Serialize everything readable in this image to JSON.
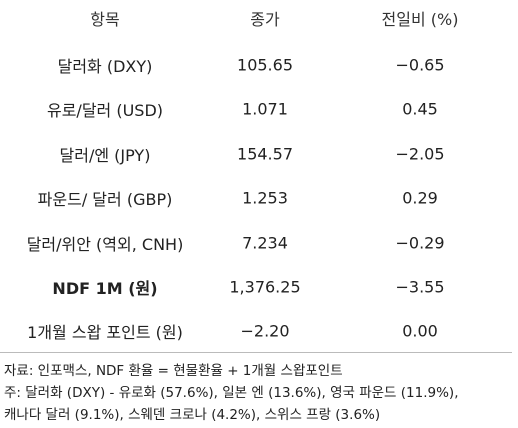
{
  "table": {
    "header": [
      "항목",
      "종가",
      "전일비 (%)"
    ],
    "rows": [
      [
        "달러화 (DXY)",
        "105.65",
        "−0.65"
      ],
      [
        "유로/달러 (USD)",
        "1.071",
        "0.45"
      ],
      [
        "달러/엔 (JPY)",
        "154.57",
        "−2.05"
      ],
      [
        "파운드/ 달러 (GBP)",
        "1.253",
        "0.29"
      ],
      [
        "달러/위안 (역외, CNH)",
        "7.234",
        "−0.29"
      ],
      [
        "NDF 1M (원)",
        "1,376.25",
        "−3.55"
      ],
      [
        "1개월 스왑 포인트 (원)",
        "−2.20",
        "0.00"
      ]
    ],
    "bold_row": 5
  },
  "notes": [
    "자료: 인포맥스, NDF 환율 = 현물환율 + 1개월 스왑포인트",
    "주: 달러화 (DXY) - 유로화 (57.6%), 일본 엔 (13.6%), 영국 파운드 (11.9%),",
    "캐나다 달러 (9.1%), 스웨덴 크로나 (4.2%), 스위스 프랑 (3.6%)"
  ]
}
